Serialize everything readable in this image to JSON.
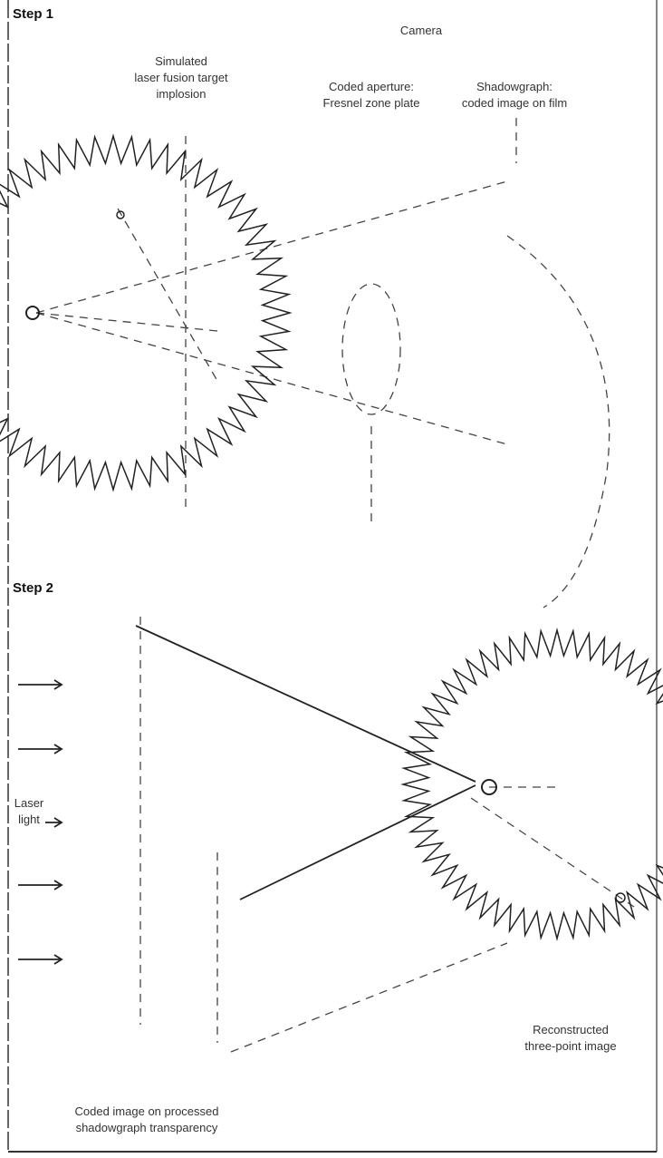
{
  "steps": [
    "Step 1",
    "Step 2"
  ],
  "labels": {
    "camera": "Camera",
    "target": [
      "Simulated",
      "laser fusion target",
      "implosion"
    ],
    "aperture": [
      "Coded aperture:",
      "Fresnel zone plate"
    ],
    "film": [
      "Shadowgraph:",
      "coded image on film"
    ],
    "laser": [
      "Laser",
      "light"
    ],
    "reconstructed": [
      "Reconstructed",
      "three-point image"
    ],
    "transparency": [
      "Coded image on processed",
      "shadowgraph transparency"
    ]
  }
}
